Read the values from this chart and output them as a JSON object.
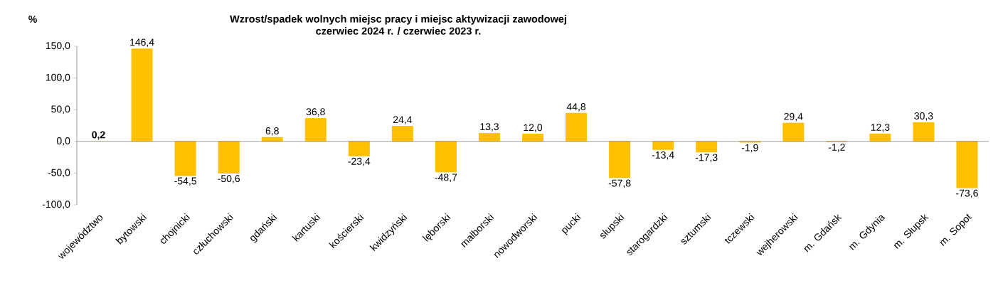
{
  "chart_data": {
    "type": "bar",
    "title": "Wzrost/spadek wolnych miejsc pracy i miejsc aktywizacji zawodowej",
    "subtitle": "czerwiec 2024 r. / czerwiec 2023 r.",
    "ylabel": "%",
    "categories": [
      "województwo",
      "bytowski",
      "chojnicki",
      "człuchowski",
      "gdański",
      "kartuski",
      "kościerski",
      "kwidzyński",
      "lęborski",
      "malborski",
      "nowodworski",
      "pucki",
      "słupski",
      "starogardzki",
      "sztumski",
      "tczewski",
      "wejherowski",
      "m. Gdańsk",
      "m. Gdynia",
      "m. Słupsk",
      "m. Sopot"
    ],
    "values": [
      0.2,
      146.4,
      -54.5,
      -50.6,
      6.8,
      36.8,
      -23.4,
      24.4,
      -48.7,
      13.3,
      12.0,
      44.8,
      -57.8,
      -13.4,
      -17.3,
      -1.9,
      29.4,
      -1.2,
      12.3,
      30.3,
      -73.6
    ],
    "value_labels": [
      "**0,2**",
      "146,4",
      "-54,5",
      "-50,6",
      "6,8",
      "36,8",
      "-23,4",
      "24,4",
      "-48,7",
      "13,3",
      "12,0",
      "44,8",
      "-57,8",
      "-13,4",
      "-17,3",
      "-1,9",
      "29,4",
      "-1,2",
      "12,3",
      "30,3",
      "-73,6"
    ],
    "color": "#ffc000",
    "ylim": [
      -100,
      150
    ],
    "yticks": [
      {
        "value": -100,
        "label": "-100,0"
      },
      {
        "value": -50,
        "label": "-50,0"
      },
      {
        "value": 0,
        "label": "0,0"
      },
      {
        "value": 50,
        "label": "50,0"
      },
      {
        "value": 100,
        "label": "100,0"
      },
      {
        "value": 150,
        "label": "150,0"
      }
    ]
  }
}
